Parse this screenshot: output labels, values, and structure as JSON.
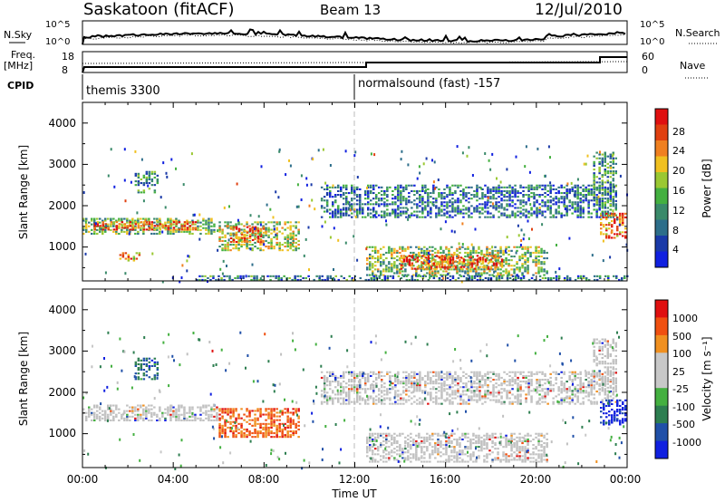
{
  "header": {
    "station": "Saskatoon (fitACF)",
    "beam": "Beam 13",
    "date": "12/Jul/2010"
  },
  "summary": {
    "nsky_label": "N.Sky",
    "nsky_ticks": [
      "10^5",
      "10^0"
    ],
    "nsearch_label": "N.Search",
    "nsearch_ticks": [
      "10^5",
      "10^0"
    ],
    "freq_label_1": "Freq.",
    "freq_label_2": "[MHz]",
    "freq_ticks": [
      "18",
      "8"
    ],
    "nave_label": "Nave",
    "nave_ticks": [
      "60",
      "0"
    ],
    "cpid_label": "CPID",
    "cpid_segments": [
      {
        "start_hour": 0.0,
        "name": "themis 3300"
      },
      {
        "start_hour": 12.0,
        "name": "normalsound (fast) -157"
      }
    ]
  },
  "axes": {
    "ylabel": "Slant Range [km]",
    "xlabel": "Time UT",
    "yticks": [
      "1000",
      "2000",
      "3000",
      "4000"
    ],
    "xticks": [
      "00:00",
      "04:00",
      "08:00",
      "12:00",
      "16:00",
      "20:00",
      "00:00"
    ]
  },
  "colors": {
    "power_scale": [
      "#1020e0",
      "#1a3aa8",
      "#2d6e8a",
      "#3a8a6a",
      "#44b040",
      "#9ac832",
      "#f0c020",
      "#f08020",
      "#e04010",
      "#e01010"
    ],
    "velocity_scale": [
      "#e01010",
      "#f05010",
      "#f09020",
      "#c8c8c8",
      "#c8c8c8",
      "#44b040",
      "#2d7e50",
      "#2050a8",
      "#1020e0"
    ],
    "ground_scatter": "#c0c0c0"
  },
  "chart_data": [
    {
      "type": "heatmap",
      "title": "Power",
      "colorbar_label": "Power [dB]",
      "colorbar_ticks": [
        "4",
        "8",
        "12",
        "16",
        "20",
        "24",
        "28"
      ],
      "x_range_hours": [
        0,
        24
      ],
      "y_range_km": [
        180,
        4500
      ],
      "regions": [
        {
          "t0": 0.0,
          "t1": 5.8,
          "r0": 1300,
          "r1": 1700,
          "level": 0.45
        },
        {
          "t0": 0.5,
          "t1": 5.0,
          "r0": 1400,
          "r1": 1600,
          "level": 0.8
        },
        {
          "t0": 2.3,
          "t1": 3.3,
          "r0": 2300,
          "r1": 2800,
          "level": 0.35
        },
        {
          "t0": 1.5,
          "t1": 2.5,
          "r0": 650,
          "r1": 850,
          "level": 0.7
        },
        {
          "t0": 6.0,
          "t1": 9.5,
          "r0": 900,
          "r1": 1600,
          "level": 0.55
        },
        {
          "t0": 6.5,
          "t1": 8.0,
          "r0": 1100,
          "r1": 1500,
          "level": 0.85
        },
        {
          "t0": 10.5,
          "t1": 23.5,
          "r0": 1700,
          "r1": 2500,
          "level": 0.25
        },
        {
          "t0": 12.5,
          "t1": 20.5,
          "r0": 300,
          "r1": 1000,
          "level": 0.5
        },
        {
          "t0": 14.0,
          "t1": 18.5,
          "r0": 450,
          "r1": 800,
          "level": 0.85
        },
        {
          "t0": 22.8,
          "t1": 24.0,
          "r0": 1200,
          "r1": 1800,
          "level": 0.8
        },
        {
          "t0": 22.5,
          "t1": 23.5,
          "r0": 2000,
          "r1": 3300,
          "level": 0.35
        },
        {
          "t0": 5.0,
          "t1": 24.0,
          "r0": 180,
          "r1": 300,
          "level": 0.3
        }
      ]
    },
    {
      "type": "heatmap",
      "title": "Velocity",
      "colorbar_label": "Velocity [m s⁻¹]",
      "colorbar_ticks": [
        "1000",
        "500",
        "100",
        "25",
        "-25",
        "-100",
        "-500",
        "-1000"
      ],
      "x_range_hours": [
        0,
        24
      ],
      "y_range_km": [
        180,
        4500
      ],
      "regions": [
        {
          "t0": 0.0,
          "t1": 6.0,
          "r0": 1300,
          "r1": 1700,
          "level": 0.0
        },
        {
          "t0": 2.3,
          "t1": 3.3,
          "r0": 2300,
          "r1": 2800,
          "level": 0.55
        },
        {
          "t0": 6.0,
          "t1": 9.5,
          "r0": 900,
          "r1": 1600,
          "level": -0.6
        },
        {
          "t0": 10.5,
          "t1": 23.5,
          "r0": 1700,
          "r1": 2500,
          "level": 0.0
        },
        {
          "t0": 12.5,
          "t1": 20.5,
          "r0": 300,
          "r1": 1000,
          "level": 0.0
        },
        {
          "t0": 22.8,
          "t1": 24.0,
          "r0": 1200,
          "r1": 1800,
          "level": 0.9
        },
        {
          "t0": 22.5,
          "t1": 23.5,
          "r0": 2000,
          "r1": 3300,
          "level": 0.0
        }
      ]
    }
  ]
}
